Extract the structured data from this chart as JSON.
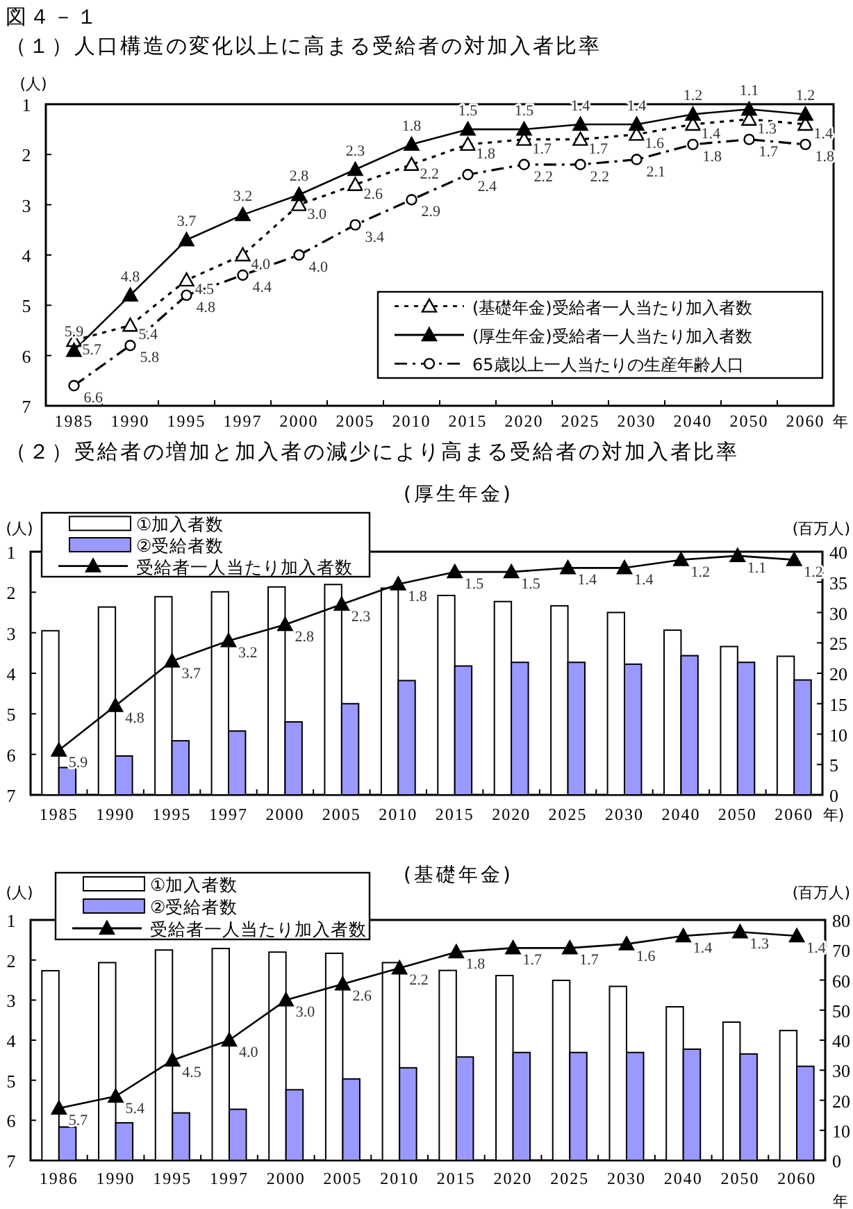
{
  "chart_data": [
    {
      "type": "line",
      "title": "（１）人口構造の変化以上に高まる受給者の対加入者比率",
      "annotations": [
        "図４－１"
      ],
      "ylabel": "(人)",
      "xlabel": "年",
      "categories": [
        "1985",
        "1990",
        "1995",
        "1997",
        "2000",
        "2005",
        "2010",
        "2015",
        "2020",
        "2025",
        "2030",
        "2040",
        "2050",
        "2060"
      ],
      "ylim": [
        7,
        1
      ],
      "yticks": [
        1,
        2,
        3,
        4,
        5,
        6,
        7
      ],
      "legend": "bottom right",
      "series": [
        {
          "name": "(基礎年金)受給者一人当たり加入者数",
          "color": "#000000",
          "marker": "triangle",
          "line_style": "dotted",
          "values": [
            5.7,
            5.4,
            4.5,
            4.0,
            3.0,
            2.6,
            2.2,
            1.8,
            1.7,
            1.7,
            1.6,
            1.4,
            1.3,
            1.4
          ],
          "value_labels": [
            "5.7",
            "5.4",
            "4.5",
            "4.0",
            "3.0",
            "2.6",
            "2.2",
            "1.8",
            "1.7",
            "1.7",
            "1.6",
            "1.4",
            "1.3",
            "1.4"
          ]
        },
        {
          "name": "(厚生年金)受給者一人当たり加入者数",
          "color": "#000000",
          "marker": "triangle",
          "line_style": "solid",
          "values": [
            5.9,
            4.8,
            3.7,
            3.2,
            2.8,
            2.3,
            1.8,
            1.5,
            1.5,
            1.4,
            1.4,
            1.2,
            1.1,
            1.2
          ],
          "value_labels": [
            "5.9",
            "4.8",
            "3.7",
            "3.2",
            "2.8",
            "2.3",
            "1.8",
            "1.5",
            "1.5",
            "1.4",
            "1.4",
            "1.2",
            "1.1",
            "1.2"
          ]
        },
        {
          "name": "65歳以上一人当たりの生産年齢人口",
          "color": "#000000",
          "marker": "circle",
          "line_style": "dashed",
          "values": [
            6.6,
            5.8,
            4.8,
            4.4,
            4.0,
            3.4,
            2.9,
            2.4,
            2.2,
            2.2,
            2.1,
            1.8,
            1.7,
            1.8
          ],
          "value_labels": [
            "6.6",
            "5.8",
            "4.8",
            "4.4",
            "4.0",
            "3.4",
            "2.9",
            "2.4",
            "2.2",
            "2.2",
            "2.1",
            "1.8",
            "1.7",
            "1.8"
          ]
        }
      ]
    },
    {
      "type": "bar",
      "title": "（２）受給者の増加と加入者の減少により高まる受給者の対加入者比率",
      "subtitle": "(厚生年金)",
      "ylabel": "(人)",
      "y2label": "(百万人)",
      "xlabel": "年)",
      "categories": [
        "1985",
        "1990",
        "1995",
        "1997",
        "2000",
        "2005",
        "2010",
        "2015",
        "2020",
        "2025",
        "2030",
        "2040",
        "2050",
        "2060"
      ],
      "ylim": [
        7,
        1
      ],
      "yticks": [
        1,
        2,
        3,
        4,
        5,
        6,
        7
      ],
      "y2lim": [
        0,
        40
      ],
      "y2ticks": [
        0,
        5,
        10,
        15,
        20,
        25,
        30,
        35,
        40
      ],
      "legend": "top left",
      "series": [
        {
          "name": "①加入者数",
          "type": "bar",
          "axis": "y2",
          "color": "#ffffff",
          "values": [
            27.0,
            30.9,
            32.6,
            33.4,
            34.2,
            34.6,
            34.0,
            32.8,
            31.8,
            31.1,
            30.0,
            27.1,
            24.4,
            22.8
          ]
        },
        {
          "name": "②受給者数",
          "type": "bar",
          "axis": "y2",
          "color": "#9999ff",
          "values": [
            4.5,
            6.4,
            8.9,
            10.5,
            12.0,
            15.0,
            18.8,
            21.2,
            21.8,
            21.8,
            21.5,
            22.9,
            21.8,
            18.9
          ]
        },
        {
          "name": "受給者一人当たり加入者数",
          "type": "line",
          "color": "#000000",
          "marker": "triangle",
          "line_style": "solid",
          "values": [
            5.9,
            4.8,
            3.7,
            3.2,
            2.8,
            2.3,
            1.8,
            1.5,
            1.5,
            1.4,
            1.4,
            1.2,
            1.1,
            1.2
          ],
          "value_labels": [
            "5.9",
            "4.8",
            "3.7",
            "3.2",
            "2.8",
            "2.3",
            "1.8",
            "1.5",
            "1.5",
            "1.4",
            "1.4",
            "1.2",
            "1.1",
            "1.2"
          ]
        }
      ]
    },
    {
      "type": "bar",
      "subtitle": "(基礎年金)",
      "ylabel": "(人)",
      "y2label": "(百万人)",
      "xlabel": "年",
      "categories": [
        "1986",
        "1990",
        "1995",
        "1997",
        "2000",
        "2005",
        "2010",
        "2015",
        "2020",
        "2025",
        "2030",
        "2040",
        "2050",
        "2060"
      ],
      "ylim": [
        7,
        1
      ],
      "yticks": [
        1,
        2,
        3,
        4,
        5,
        6,
        7
      ],
      "y2lim": [
        0,
        80
      ],
      "y2ticks": [
        0,
        10,
        20,
        30,
        40,
        50,
        60,
        70,
        80
      ],
      "legend": "top left",
      "series": [
        {
          "name": "①加入者数",
          "type": "bar",
          "axis": "y2",
          "color": "#ffffff",
          "values": [
            63.1,
            65.8,
            70.0,
            70.5,
            69.3,
            68.9,
            65.8,
            63.2,
            61.5,
            59.9,
            57.9,
            51.1,
            46.0,
            43.2
          ]
        },
        {
          "name": "②受給者数",
          "type": "bar",
          "axis": "y2",
          "color": "#9999ff",
          "values": [
            11.1,
            12.5,
            15.8,
            17.0,
            23.5,
            27.1,
            30.8,
            34.4,
            35.9,
            35.9,
            35.9,
            37.0,
            35.4,
            31.3
          ]
        },
        {
          "name": "受給者一人当たり加入者数",
          "type": "line",
          "color": "#000000",
          "marker": "triangle",
          "line_style": "solid",
          "values": [
            5.7,
            5.4,
            4.5,
            4.0,
            3.0,
            2.6,
            2.2,
            1.8,
            1.7,
            1.7,
            1.6,
            1.4,
            1.3,
            1.4
          ],
          "value_labels": [
            "5.7",
            "5.4",
            "4.5",
            "4.0",
            "3.0",
            "2.6",
            "2.2",
            "1.8",
            "1.7",
            "1.7",
            "1.6",
            "1.4",
            "1.3",
            "1.4"
          ]
        }
      ]
    }
  ]
}
